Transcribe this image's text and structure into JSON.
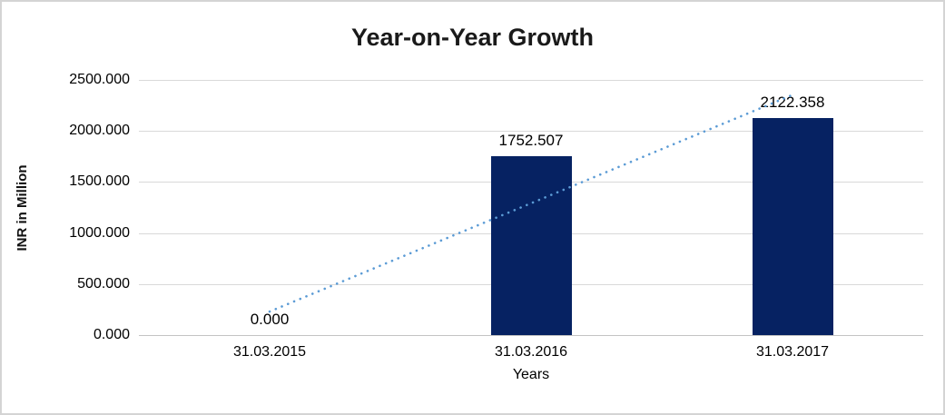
{
  "chart_data": {
    "type": "bar",
    "title": "Year-on-Year Growth",
    "xlabel": "Years",
    "ylabel": "INR in Million",
    "categories": [
      "31.03.2015",
      "31.03.2016",
      "31.03.2017"
    ],
    "values": [
      0.0,
      1752.507,
      2122.358
    ],
    "data_labels": [
      "0.000",
      "1752.507",
      "2122.358"
    ],
    "y_ticks": [
      {
        "value": 2500,
        "label": "2500.000"
      },
      {
        "value": 2000,
        "label": "2000.000"
      },
      {
        "value": 1500,
        "label": "1500.000"
      },
      {
        "value": 1000,
        "label": "1000.000"
      },
      {
        "value": 500,
        "label": "500.000"
      },
      {
        "value": 0,
        "label": "0.000"
      }
    ],
    "ylim": [
      0,
      2500
    ],
    "grid": true,
    "legend": "none",
    "trendline": {
      "type": "linear",
      "style": "dotted",
      "color": "#5B9BD5"
    },
    "colors": {
      "bar": "#062262",
      "gridline": "#D9D9D9",
      "axis_line": "#C3C3C3",
      "title_text": "#1A1A1A",
      "label_text": "#000000",
      "frame_border": "#D4D4D4",
      "background": "#FFFFFF"
    }
  }
}
